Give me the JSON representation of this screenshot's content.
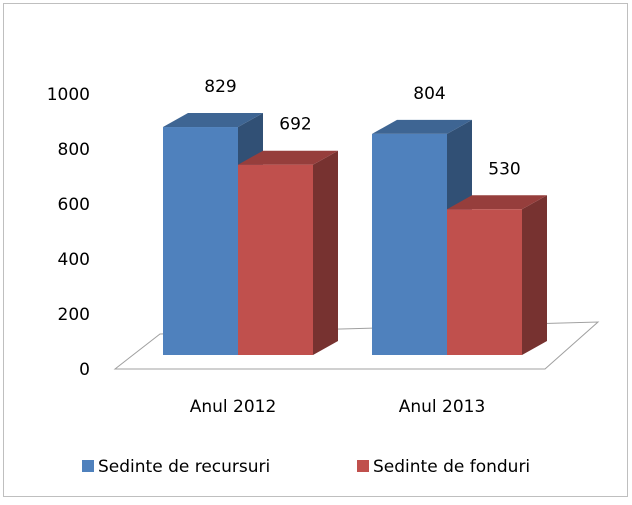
{
  "chart_data": {
    "type": "bar3d",
    "categories": [
      "Anul 2012",
      "Anul 2013"
    ],
    "series": [
      {
        "name": "Sedinte de recursuri",
        "color": "#4f81bd",
        "values": [
          829,
          804
        ]
      },
      {
        "name": "Sedinte de fonduri",
        "color": "#c0504d",
        "values": [
          692,
          530
        ]
      }
    ],
    "ylim": [
      0,
      1000
    ],
    "yticks": [
      0,
      200,
      400,
      600,
      800,
      1000
    ],
    "legend": "bottom"
  }
}
